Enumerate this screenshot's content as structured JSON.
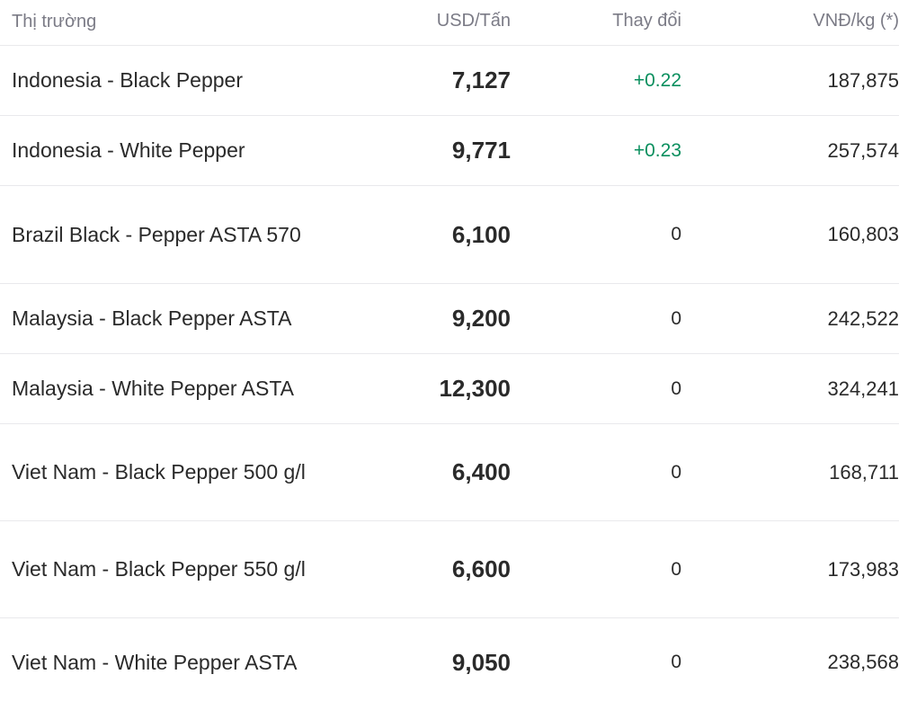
{
  "header": {
    "market": "Thị trường",
    "usd": "USD/Tấn",
    "change": "Thay đổi",
    "vnd": "VNĐ/kg (*)"
  },
  "rows": [
    {
      "market": "Indonesia - Black Pepper",
      "usd": "7,127",
      "change": "+0.22",
      "vnd": "187,875"
    },
    {
      "market": "Indonesia - White Pepper",
      "usd": "9,771",
      "change": "+0.23",
      "vnd": "257,574"
    },
    {
      "market": "Brazil Black - Pepper ASTA 570",
      "usd": "6,100",
      "change": "0",
      "vnd": "160,803"
    },
    {
      "market": "Malaysia - Black Pepper ASTA",
      "usd": "9,200",
      "change": "0",
      "vnd": "242,522"
    },
    {
      "market": "Malaysia - White Pepper ASTA",
      "usd": "12,300",
      "change": "0",
      "vnd": "324,241"
    },
    {
      "market": "Viet Nam - Black Pepper 500 g/l",
      "usd": "6,400",
      "change": "0",
      "vnd": "168,711"
    },
    {
      "market": "Viet Nam - Black Pepper 550 g/l",
      "usd": "6,600",
      "change": "0",
      "vnd": "173,983"
    },
    {
      "market": "Viet Nam - White Pepper ASTA",
      "usd": "9,050",
      "change": "0",
      "vnd": "238,568"
    }
  ],
  "colors": {
    "positive_change": "#0a8f5e",
    "header_text": "#7b7b86",
    "divider": "#e9e9ec"
  }
}
